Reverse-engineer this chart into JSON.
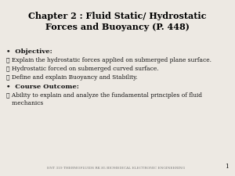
{
  "title_line1": "Chapter 2 : Fluid Static/ Hydrostatic",
  "title_line2": "Forces and Buoyancy (P. 448)",
  "bg_color": "#ede9e3",
  "title_color": "#000000",
  "body_color": "#111111",
  "footer_text": "ENT 319 THERMOFLUIDS RK 85 BIOMEDICAL ELECTRONIC ENGINEERING",
  "page_number": "1",
  "objective_label": "Objective:",
  "check_items": [
    "Explain the hydrostatic forces applied on submerged plane surface.",
    "Hydrostatic forced on submerged curved surface.",
    "Define and explain Buoyancy and Stability."
  ],
  "outcome_label": "Course Outcome:",
  "outcome_items": [
    "Ability to explain and analyze the fundamental principles of fluid\n   mechanics"
  ],
  "title_fontsize": 8.0,
  "bullet_fontsize": 6.0,
  "body_fontsize": 5.4,
  "footer_fontsize": 3.2
}
